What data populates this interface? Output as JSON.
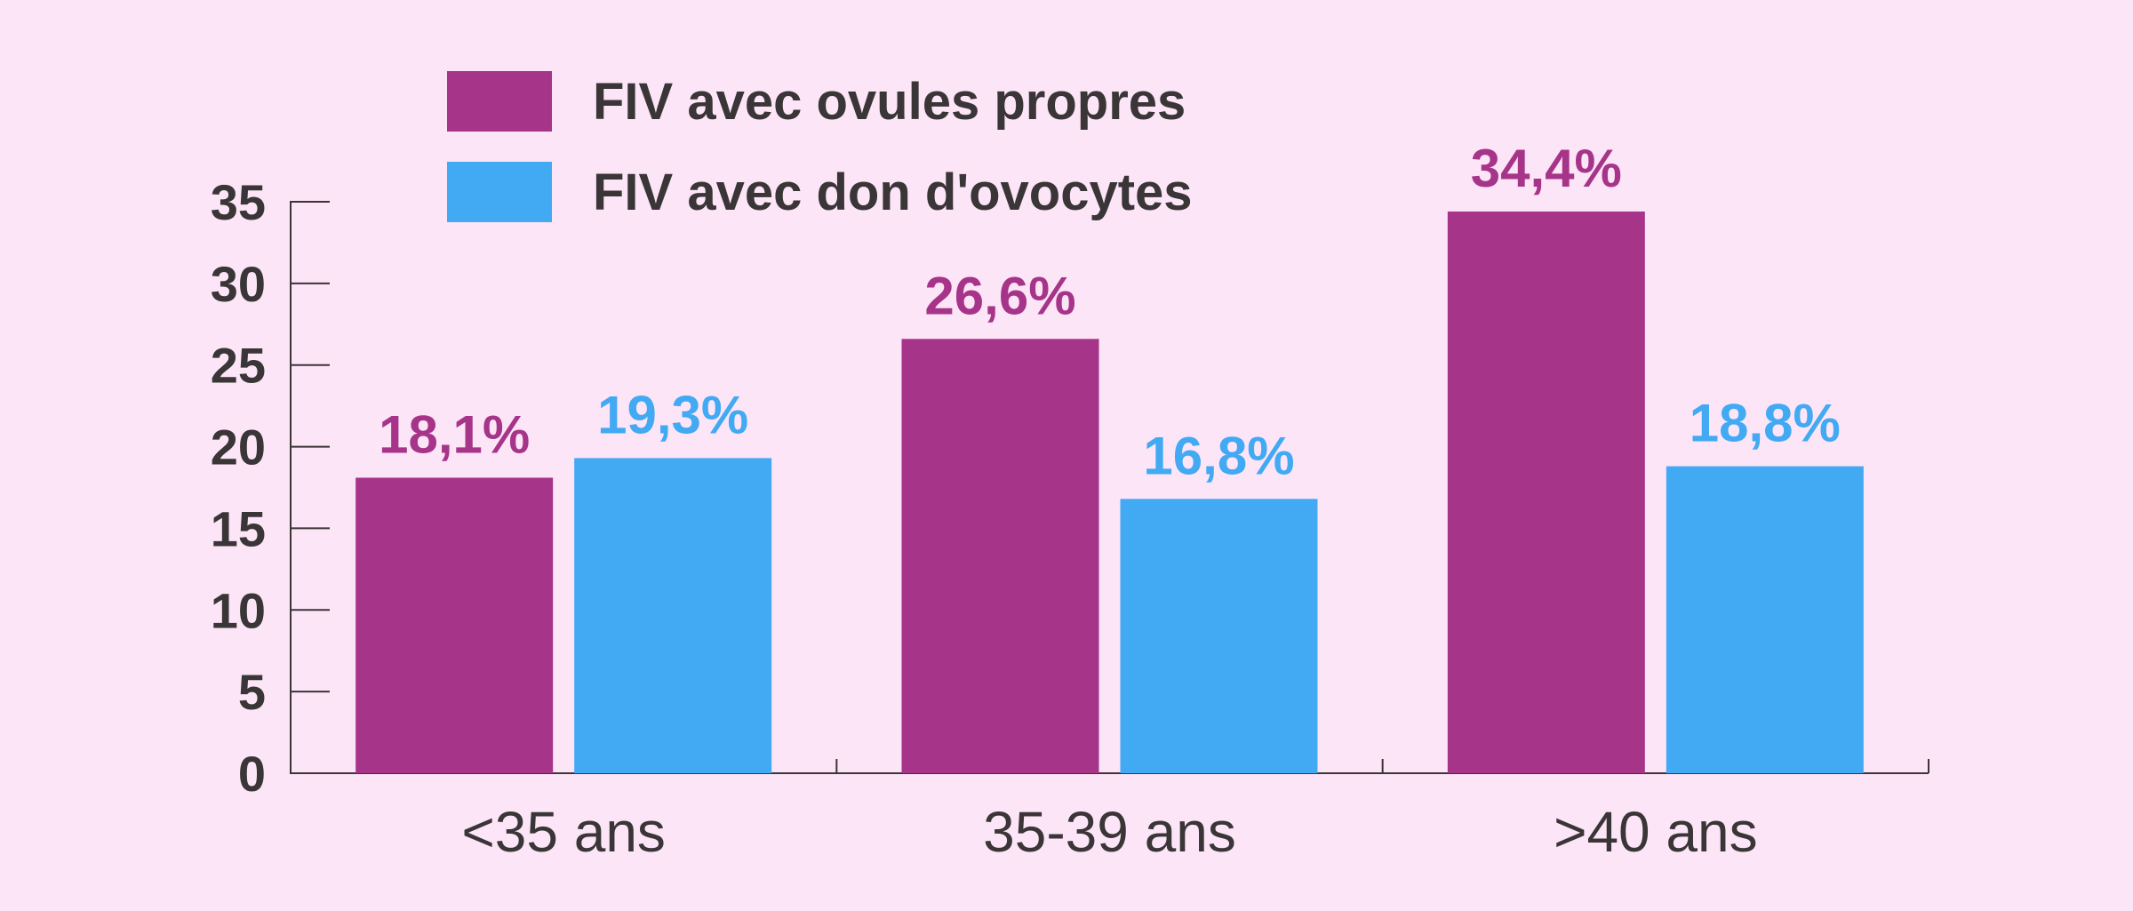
{
  "colors": {
    "background": "#fde5f8",
    "axis": "#3a3536",
    "series_1": "#a63489",
    "series_2": "#42a9f3"
  },
  "chart_data": {
    "type": "bar",
    "categories": [
      "<35 ans",
      "35-39 ans",
      ">40 ans"
    ],
    "series": [
      {
        "name": "FIV avec ovules propres",
        "values": [
          18.1,
          26.6,
          34.4
        ],
        "labels": [
          "18,1%",
          "26,6%",
          "34,4%"
        ],
        "color": "#a63489"
      },
      {
        "name": "FIV avec don d'ovocytes",
        "values": [
          19.3,
          16.8,
          18.8
        ],
        "labels": [
          "19,3%",
          "16,8%",
          "18,8%"
        ],
        "color": "#42a9f3"
      }
    ],
    "ylim": [
      0,
      35
    ],
    "yticks": [
      "0",
      "5",
      "10",
      "15",
      "20",
      "25",
      "30",
      "35"
    ],
    "legend": "top-left",
    "grid": false
  }
}
